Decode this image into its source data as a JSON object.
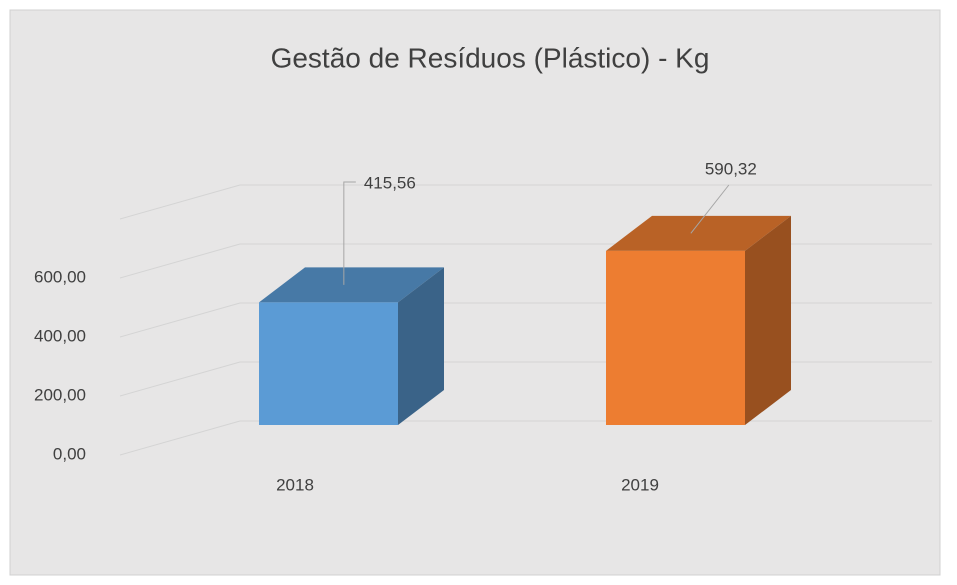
{
  "chart_data": {
    "type": "bar3d",
    "title": "Gestão de Resíduos (Plástico) - Kg",
    "categories": [
      "2018",
      "2019"
    ],
    "values": [
      415.56,
      590.32
    ],
    "value_labels": [
      "415,56",
      "590,32"
    ],
    "colors": [
      "#5b9bd5",
      "#ed7d31"
    ],
    "ylim": [
      0,
      800
    ],
    "yticks": [
      {
        "value": 0,
        "label": "0,00"
      },
      {
        "value": 200,
        "label": "200,00"
      },
      {
        "value": 400,
        "label": "400,00"
      },
      {
        "value": 600,
        "label": "600,00"
      }
    ],
    "grid": true
  }
}
